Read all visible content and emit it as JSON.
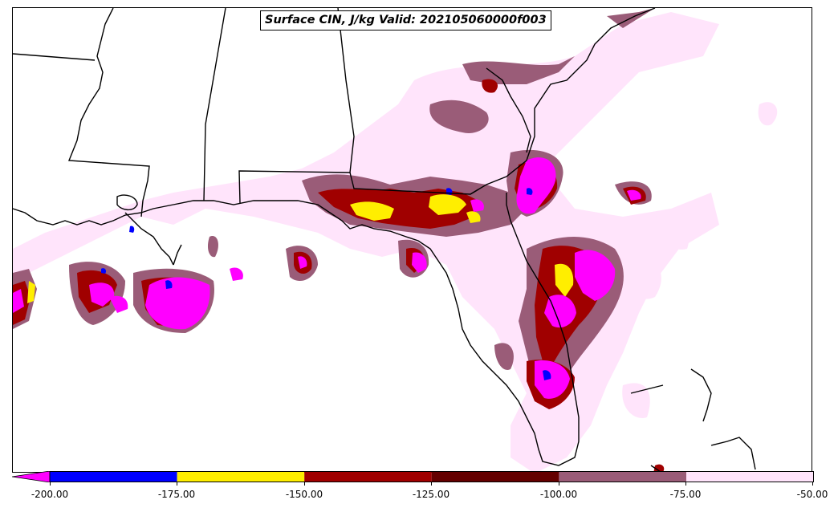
{
  "title": "Surface CIN, J/kg Valid: 202105060000f003",
  "colors": {
    "lt_m200": "#ff00ff",
    "m200_m175": "#0000ff",
    "m175_m150": "#ffee00",
    "m150_m125": "#a00000",
    "m125_m100": "#640000",
    "m100_m75": "#9a5c78",
    "m75_m50": "#ffe4fb"
  },
  "colorbar": {
    "ticks": [
      "-200.00",
      "-175.00",
      "-150.00",
      "-125.00",
      "-100.00",
      "-75.00",
      "-50.00"
    ],
    "extend": "min"
  }
}
